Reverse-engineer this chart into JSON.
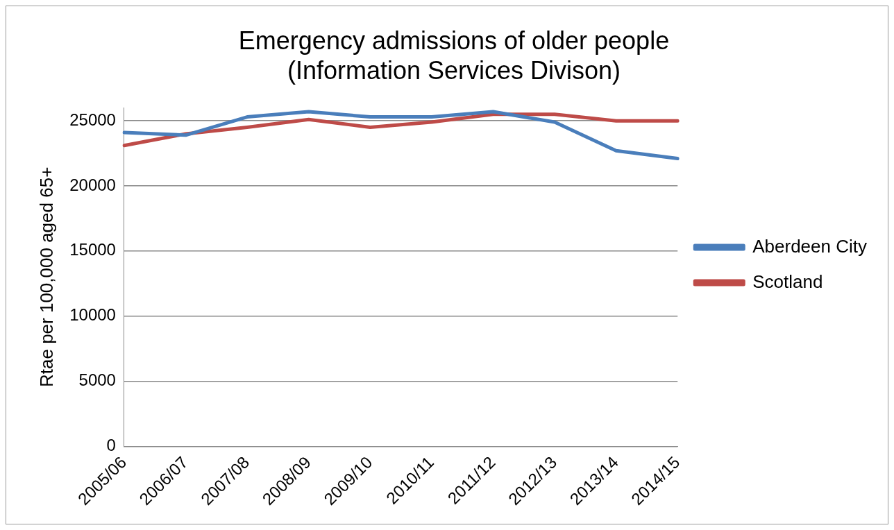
{
  "chart_data": {
    "type": "line",
    "title": [
      "Emergency admissions of older people",
      "(Information Services Divison)"
    ],
    "ylabel": "Rtae per 100,000 aged 65+",
    "categories": [
      "2005/06",
      "2006/07",
      "2007/08",
      "2008/09",
      "2009/10",
      "2010/11",
      "2011/12",
      "2012/13",
      "2013/14",
      "2014/15"
    ],
    "series": [
      {
        "name": "Aberdeen City",
        "color": "#4a7ebb",
        "values": [
          24100,
          23900,
          25300,
          25700,
          25300,
          25300,
          25700,
          24900,
          22700,
          22100
        ]
      },
      {
        "name": "Scotland",
        "color": "#be4b48",
        "values": [
          23100,
          24000,
          24500,
          25100,
          24500,
          24900,
          25500,
          25500,
          25000,
          25000
        ]
      }
    ],
    "ylim": [
      0,
      26000
    ],
    "yticks": [
      0,
      5000,
      10000,
      15000,
      20000,
      25000
    ],
    "grid": "y",
    "legend": "right",
    "marker": "none",
    "line_style": "solid"
  }
}
